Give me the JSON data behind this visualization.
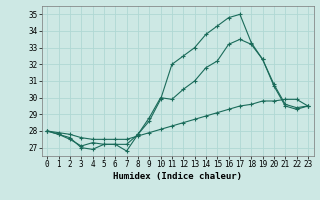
{
  "title": "",
  "xlabel": "Humidex (Indice chaleur)",
  "ylabel": "",
  "background_color": "#cde8e4",
  "grid_color": "#b0d8d4",
  "line_color": "#1a6b5a",
  "xlim": [
    -0.5,
    23.5
  ],
  "ylim": [
    26.5,
    35.5
  ],
  "yticks": [
    27,
    28,
    29,
    30,
    31,
    32,
    33,
    34,
    35
  ],
  "xticks": [
    0,
    1,
    2,
    3,
    4,
    5,
    6,
    7,
    8,
    9,
    10,
    11,
    12,
    13,
    14,
    15,
    16,
    17,
    18,
    19,
    20,
    21,
    22,
    23
  ],
  "line1_x": [
    0,
    1,
    2,
    3,
    4,
    5,
    6,
    7,
    8,
    9,
    10,
    11,
    12,
    13,
    14,
    15,
    16,
    17,
    18,
    19,
    20,
    21,
    22,
    23
  ],
  "line1_y": [
    28.0,
    27.8,
    27.6,
    27.0,
    26.9,
    27.2,
    27.2,
    26.8,
    27.8,
    28.6,
    29.9,
    32.0,
    32.5,
    33.0,
    33.8,
    34.3,
    34.8,
    35.0,
    33.3,
    32.3,
    30.7,
    29.5,
    29.3,
    29.5
  ],
  "line2_x": [
    0,
    1,
    2,
    3,
    4,
    5,
    6,
    7,
    8,
    9,
    10,
    11,
    12,
    13,
    14,
    15,
    16,
    17,
    18,
    19,
    20,
    21,
    22,
    23
  ],
  "line2_y": [
    28.0,
    27.8,
    27.5,
    27.1,
    27.3,
    27.2,
    27.2,
    27.2,
    27.8,
    28.8,
    30.0,
    29.9,
    30.5,
    31.0,
    31.8,
    32.2,
    33.2,
    33.5,
    33.2,
    32.3,
    30.8,
    29.6,
    29.4,
    29.5
  ],
  "line3_x": [
    0,
    1,
    2,
    3,
    4,
    5,
    6,
    7,
    8,
    9,
    10,
    11,
    12,
    13,
    14,
    15,
    16,
    17,
    18,
    19,
    20,
    21,
    22,
    23
  ],
  "line3_y": [
    28.0,
    27.9,
    27.8,
    27.6,
    27.5,
    27.5,
    27.5,
    27.5,
    27.7,
    27.9,
    28.1,
    28.3,
    28.5,
    28.7,
    28.9,
    29.1,
    29.3,
    29.5,
    29.6,
    29.8,
    29.8,
    29.9,
    29.9,
    29.5
  ],
  "tick_fontsize": 5.5,
  "xlabel_fontsize": 6.5,
  "marker_size": 3.5,
  "linewidth": 0.8
}
